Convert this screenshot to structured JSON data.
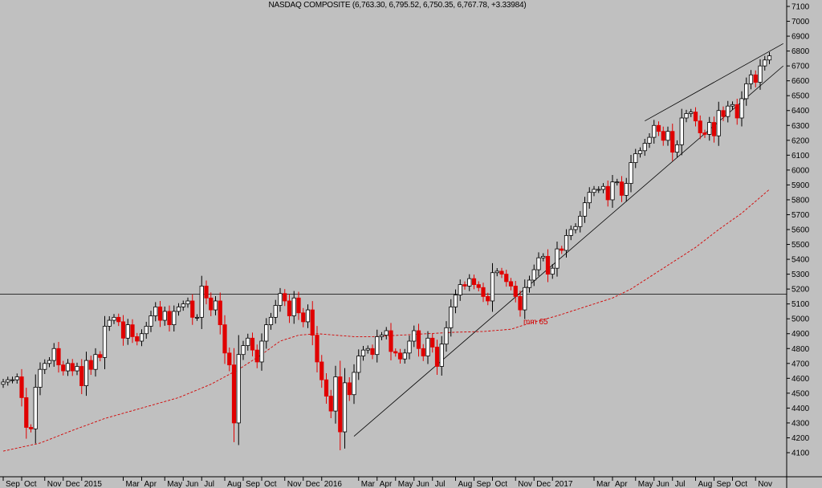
{
  "chart_data": {
    "type": "candlestick",
    "title": "NASDAQ COMPOSITE (6,763.30, 6,795.52, 6,750.35, 6,767.78, +3.33984)",
    "ylim": [
      4100,
      7100
    ],
    "y_ticks": [
      4100,
      4200,
      4300,
      4400,
      4500,
      4600,
      4700,
      4800,
      4900,
      5000,
      5100,
      5200,
      5300,
      5400,
      5500,
      5600,
      5700,
      5800,
      5900,
      6000,
      6100,
      6200,
      6300,
      6400,
      6500,
      6600,
      6700,
      6800,
      6900,
      7000,
      7100
    ],
    "x_ticks": [
      {
        "label": "Sep",
        "i": 0
      },
      {
        "label": "Oct",
        "i": 4
      },
      {
        "label": "Nov",
        "i": 9
      },
      {
        "label": "Dec",
        "i": 13
      },
      {
        "label": "2015",
        "i": 17
      },
      {
        "label": "Mar",
        "i": 26
      },
      {
        "label": "Apr",
        "i": 30
      },
      {
        "label": "May",
        "i": 35
      },
      {
        "label": "Jun",
        "i": 39
      },
      {
        "label": "Jul",
        "i": 43
      },
      {
        "label": "Aug",
        "i": 48
      },
      {
        "label": "Sep",
        "i": 52
      },
      {
        "label": "Oct",
        "i": 56
      },
      {
        "label": "Nov",
        "i": 61
      },
      {
        "label": "Dec",
        "i": 65
      },
      {
        "label": "2016",
        "i": 69
      },
      {
        "label": "Mar",
        "i": 77
      },
      {
        "label": "Apr",
        "i": 81
      },
      {
        "label": "May",
        "i": 85
      },
      {
        "label": "Jun",
        "i": 89
      },
      {
        "label": "Jul",
        "i": 93
      },
      {
        "label": "Aug",
        "i": 98
      },
      {
        "label": "Sep",
        "i": 102
      },
      {
        "label": "Oct",
        "i": 106
      },
      {
        "label": "Nov",
        "i": 111
      },
      {
        "label": "Dec",
        "i": 115
      },
      {
        "label": "2017",
        "i": 119
      },
      {
        "label": "Mar",
        "i": 128
      },
      {
        "label": "Apr",
        "i": 132
      },
      {
        "label": "May",
        "i": 137
      },
      {
        "label": "Jun",
        "i": 141
      },
      {
        "label": "Jul",
        "i": 145
      },
      {
        "label": "Aug",
        "i": 150
      },
      {
        "label": "Sep",
        "i": 154
      },
      {
        "label": "Oct",
        "i": 158
      },
      {
        "label": "Nov",
        "i": 163
      }
    ],
    "close": [
      4575,
      4590,
      4590,
      4610,
      4470,
      4270,
      4260,
      4540,
      4660,
      4700,
      4720,
      4800,
      4690,
      4650,
      4700,
      4650,
      4680,
      4550,
      4720,
      4660,
      4760,
      4740,
      4950,
      4990,
      5010,
      4980,
      4870,
      4960,
      4880,
      4850,
      4900,
      4950,
      5020,
      5080,
      4990,
      5050,
      4960,
      5050,
      5080,
      5100,
      5120,
      5010,
      5010,
      5220,
      5140,
      5060,
      5120,
      4960,
      4770,
      4690,
      4300,
      4760,
      4820,
      4870,
      4790,
      4710,
      4850,
      4960,
      5010,
      5090,
      5170,
      5120,
      5020,
      5140,
      5040,
      4980,
      5060,
      4890,
      4710,
      4590,
      4480,
      4380,
      4610,
      4240,
      4570,
      4490,
      4640,
      4750,
      4790,
      4800,
      4760,
      4880,
      4890,
      4920,
      4780,
      4770,
      4730,
      4770,
      4850,
      4920,
      4800,
      4750,
      4870,
      4810,
      4680,
      4830,
      4940,
      5080,
      5160,
      5230,
      5220,
      5270,
      5230,
      5210,
      5150,
      5120,
      5310,
      5320,
      5300,
      5250,
      5220,
      5150,
      5060,
      5210,
      5260,
      5330,
      5410,
      5420,
      5300,
      5340,
      5470,
      5460,
      5560,
      5600,
      5620,
      5690,
      5780,
      5850,
      5870,
      5870,
      5890,
      5800,
      5920,
      5920,
      5830,
      5910,
      6050,
      6110,
      6130,
      6180,
      6220,
      6300,
      6260,
      6200,
      6260,
      6120,
      6170,
      6350,
      6380,
      6390,
      6330,
      6250,
      6240,
      6320,
      6230,
      6400,
      6360,
      6430,
      6440,
      6350,
      6480,
      6580,
      6640,
      6590,
      6700,
      6740,
      6768
    ],
    "ma_label": "mm 65",
    "ma": [
      [
        0,
        4110
      ],
      [
        8,
        4165
      ],
      [
        15,
        4250
      ],
      [
        22,
        4330
      ],
      [
        30,
        4400
      ],
      [
        38,
        4470
      ],
      [
        45,
        4560
      ],
      [
        51,
        4660
      ],
      [
        56,
        4760
      ],
      [
        60,
        4850
      ],
      [
        64,
        4890
      ],
      [
        68,
        4900
      ],
      [
        72,
        4890
      ],
      [
        76,
        4880
      ],
      [
        80,
        4880
      ],
      [
        86,
        4890
      ],
      [
        92,
        4900
      ],
      [
        98,
        4910
      ],
      [
        104,
        4915
      ],
      [
        110,
        4930
      ],
      [
        114,
        4970
      ],
      [
        120,
        5020
      ],
      [
        126,
        5080
      ],
      [
        132,
        5140
      ],
      [
        136,
        5200
      ],
      [
        140,
        5280
      ],
      [
        145,
        5380
      ],
      [
        150,
        5480
      ],
      [
        155,
        5600
      ],
      [
        160,
        5710
      ],
      [
        166,
        5870
      ]
    ],
    "hline": 5165,
    "upper_channel": [
      [
        139,
        6330
      ],
      [
        169,
        6850
      ]
    ],
    "lower_channel": [
      [
        76,
        4210
      ],
      [
        169,
        6700
      ]
    ]
  }
}
